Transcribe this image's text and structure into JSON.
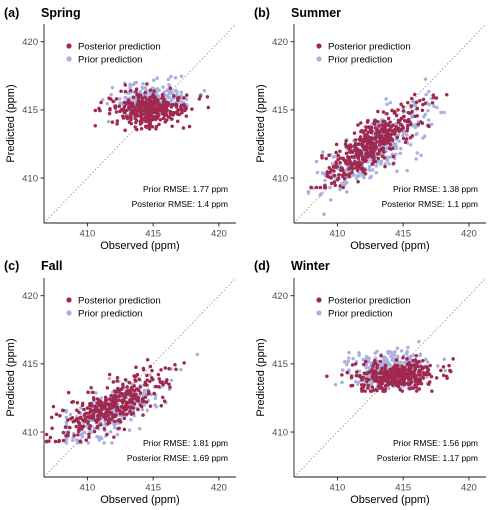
{
  "colors": {
    "posterior": "#a0294f",
    "prior": "#a9b1e0",
    "axis": "#1a1a1a",
    "one_to_one": "#8c8c8c"
  },
  "chart_data": [
    {
      "type": "scatter",
      "tag": "(a)",
      "title": "Spring",
      "xlabel": "Observed (ppm)",
      "ylabel": "Predicted (ppm)",
      "xlim": [
        406.7,
        421.3
      ],
      "ylim": [
        406.7,
        421.3
      ],
      "xticks": [
        410,
        415,
        420
      ],
      "yticks": [
        410,
        415,
        420
      ],
      "grid": false,
      "one_to_one_line": true,
      "legend_position": "top-left",
      "legend": [
        "Posterior prediction",
        "Prior prediction"
      ],
      "annotations": [
        "Prior RMSE: 1.77 ppm",
        "Posterior RMSE: 1.4 ppm"
      ],
      "series": [
        {
          "name": "Posterior prediction",
          "cloud": {
            "n": 340,
            "cx": 414.6,
            "cy": 415.0,
            "sx": 1.5,
            "sy": 0.65,
            "rho": 0.1,
            "xmin": 410.6,
            "xmax": 419.4,
            "ymin": 413.1,
            "ymax": 417.4
          }
        },
        {
          "name": "Prior prediction",
          "cloud": {
            "n": 240,
            "cx": 414.8,
            "cy": 415.7,
            "sx": 1.5,
            "sy": 0.65,
            "rho": 0.1,
            "xmin": 410.7,
            "xmax": 419.6,
            "ymin": 413.2,
            "ymax": 417.8
          }
        }
      ]
    },
    {
      "type": "scatter",
      "tag": "(b)",
      "title": "Summer",
      "xlabel": "Observed (ppm)",
      "ylabel": "Predicted (ppm)",
      "xlim": [
        406.7,
        421.3
      ],
      "ylim": [
        406.7,
        421.3
      ],
      "xticks": [
        410,
        415,
        420
      ],
      "yticks": [
        410,
        415,
        420
      ],
      "grid": false,
      "one_to_one_line": true,
      "legend_position": "top-left",
      "legend": [
        "Posterior prediction",
        "Prior prediction"
      ],
      "annotations": [
        "Prior RMSE: 1.38 ppm",
        "Posterior RMSE: 1.1 ppm"
      ],
      "series": [
        {
          "name": "Posterior prediction",
          "cloud": {
            "n": 420,
            "cx": 412.7,
            "cy": 412.6,
            "sx": 1.9,
            "sy": 1.5,
            "rho": 0.85,
            "xmin": 408.0,
            "xmax": 418.7,
            "ymin": 409.3,
            "ymax": 416.8
          }
        },
        {
          "name": "Prior prediction",
          "cloud": {
            "n": 340,
            "cx": 412.9,
            "cy": 412.3,
            "sx": 2.1,
            "sy": 1.75,
            "rho": 0.78,
            "xmin": 407.8,
            "xmax": 419.3,
            "ymin": 407.2,
            "ymax": 417.5
          }
        }
      ]
    },
    {
      "type": "scatter",
      "tag": "(c)",
      "title": "Fall",
      "xlabel": "Observed (ppm)",
      "ylabel": "Predicted (ppm)",
      "xlim": [
        406.7,
        421.3
      ],
      "ylim": [
        406.7,
        421.3
      ],
      "xticks": [
        410,
        415,
        420
      ],
      "yticks": [
        410,
        415,
        420
      ],
      "grid": false,
      "one_to_one_line": true,
      "legend_position": "top-left",
      "legend": [
        "Posterior prediction",
        "Prior prediction"
      ],
      "annotations": [
        "Prior RMSE: 1.81 ppm",
        "Posterior RMSE: 1.69 ppm"
      ],
      "series": [
        {
          "name": "Posterior prediction",
          "cloud": {
            "n": 360,
            "cx": 411.8,
            "cy": 411.9,
            "sx": 2.1,
            "sy": 1.2,
            "rho": 0.75,
            "xmin": 406.9,
            "xmax": 418.4,
            "ymin": 409.3,
            "ymax": 415.3
          }
        },
        {
          "name": "Prior prediction",
          "cloud": {
            "n": 260,
            "cx": 411.9,
            "cy": 411.5,
            "sx": 2.1,
            "sy": 1.3,
            "rho": 0.72,
            "xmin": 408.4,
            "xmax": 418.8,
            "ymin": 409.2,
            "ymax": 415.7
          }
        }
      ]
    },
    {
      "type": "scatter",
      "tag": "(d)",
      "title": "Winter",
      "xlabel": "Observed (ppm)",
      "ylabel": "Predicted (ppm)",
      "xlim": [
        406.7,
        421.3
      ],
      "ylim": [
        406.7,
        421.3
      ],
      "xticks": [
        410,
        415,
        420
      ],
      "yticks": [
        410,
        415,
        420
      ],
      "grid": false,
      "one_to_one_line": true,
      "legend_position": "top-left",
      "legend": [
        "Posterior prediction",
        "Prior prediction"
      ],
      "annotations": [
        "Prior RMSE: 1.56 ppm",
        "Posterior RMSE: 1.17 ppm"
      ],
      "series": [
        {
          "name": "Posterior prediction",
          "cloud": {
            "n": 380,
            "cx": 414.4,
            "cy": 414.1,
            "sx": 1.6,
            "sy": 0.55,
            "rho": 0.15,
            "xmin": 409.2,
            "xmax": 418.8,
            "ymin": 413.0,
            "ymax": 415.6
          }
        },
        {
          "name": "Prior prediction",
          "cloud": {
            "n": 300,
            "cx": 414.0,
            "cy": 414.6,
            "sx": 1.5,
            "sy": 0.75,
            "rho": 0.1,
            "xmin": 409.0,
            "xmax": 418.5,
            "ymin": 413.2,
            "ymax": 417.5
          }
        }
      ]
    }
  ]
}
